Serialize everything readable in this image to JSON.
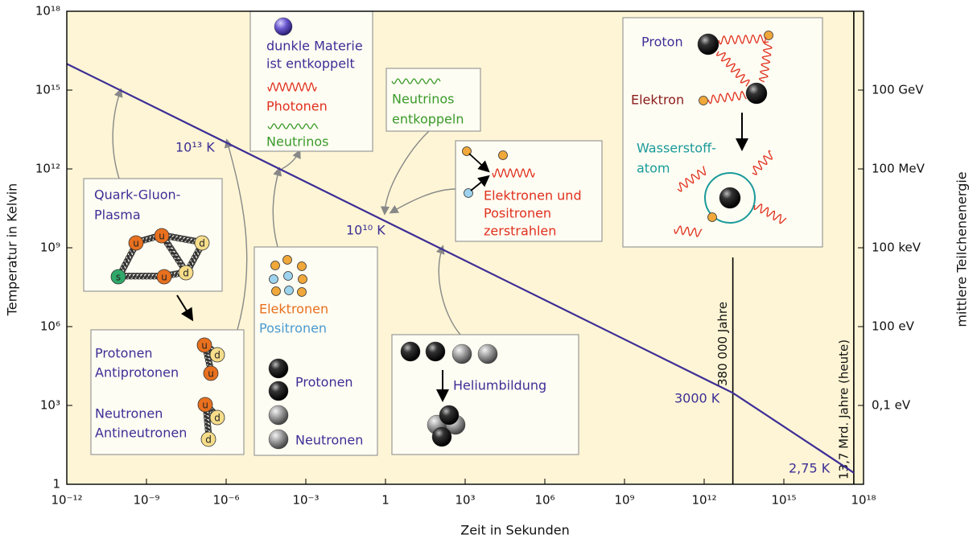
{
  "chart_data": {
    "type": "line",
    "xlabel": "Zeit in Sekunden",
    "ylabel": "Temperatur in Kelvin",
    "y2label": "mittlere Teilchenenergie",
    "xscale": "log",
    "yscale": "log",
    "xlim": [
      1e-12,
      1e+18
    ],
    "ylim": [
      1,
      1e+18
    ],
    "y2lim": [
      0.0001,
      100000000000000.0
    ],
    "background": "#fdf5d5",
    "xticks": [
      {
        "value": 1e-12,
        "label": "10⁻¹²"
      },
      {
        "value": 1e-09,
        "label": "10⁻⁹"
      },
      {
        "value": 1e-06,
        "label": "10⁻⁶"
      },
      {
        "value": 0.001,
        "label": "10⁻³"
      },
      1,
      {
        "value": 1000,
        "label": "10³"
      },
      {
        "value": 1000000,
        "label": "10⁶"
      },
      {
        "value": 1000000000,
        "label": "10⁹"
      },
      {
        "value": 1000000000000,
        "label": "10¹²"
      },
      {
        "value": 1000000000000000.0,
        "label": "10¹⁵"
      },
      {
        "value": 1e+18,
        "label": "10¹⁸"
      }
    ],
    "yticks": [
      1,
      {
        "value": 1000,
        "label": "10³"
      },
      {
        "value": 1000000,
        "label": "10⁶"
      },
      {
        "value": 1000000000,
        "label": "10⁹"
      },
      {
        "value": 1000000000000,
        "label": "10¹²"
      },
      {
        "value": 1000000000000000.0,
        "label": "10¹⁵"
      },
      {
        "value": 1e+18,
        "label": "10¹⁸"
      }
    ],
    "y2ticks": [
      {
        "value": 0.1,
        "label": "0,1 eV"
      },
      {
        "value": 100,
        "label": "100 eV"
      },
      {
        "value": 100000,
        "label": "100 keV"
      },
      {
        "value": 100000000,
        "label": "100 MeV"
      },
      {
        "value": 100000000000,
        "label": "100 GeV"
      }
    ],
    "series": [
      {
        "color": "#3d2e96",
        "x": [
          1e-12,
          12000000000000,
          430000000000000000
        ],
        "values": [
          1e+16,
          3000,
          2.75
        ]
      }
    ],
    "vlines": [
      {
        "x": 12000000000000,
        "label": "380 000 Jahre"
      },
      {
        "x": 430000000000000000,
        "label": "13,7 Mrd. Jahre (heute)"
      }
    ],
    "point_labels": [
      "10¹³ K",
      "10¹⁰ K",
      "3000 K",
      "2,75 K"
    ],
    "boxes": [
      {
        "lines": [
          {
            "text": "Quark-Gluon-",
            "color": "#3d2e96"
          },
          {
            "text": "Plasma",
            "color": "#3d2e96"
          }
        ],
        "quarks": [
          "u",
          "u",
          "d",
          "s",
          "u",
          "d"
        ]
      },
      {
        "lines": [
          {
            "text": "Protonen",
            "color": "#3d2e96"
          },
          {
            "text": "Antiprotonen",
            "color": "#3d2e96"
          },
          {
            "text": "Neutronen",
            "color": "#3d2e96"
          },
          {
            "text": "Antineutronen",
            "color": "#3d2e96"
          }
        ],
        "quarks": [
          "u",
          "d",
          "u",
          "u",
          "d",
          "d"
        ]
      },
      {
        "lines": [
          {
            "text": "dunkle Materie",
            "color": "#3d2e96"
          },
          {
            "text": "ist entkoppelt",
            "color": "#3d2e96"
          },
          {
            "text": "Photonen",
            "color": "#e0301e"
          },
          {
            "text": "Neutrinos",
            "color": "#3a9a2a"
          }
        ]
      },
      {
        "lines": [
          {
            "text": "Neutrinos",
            "color": "#3a9a2a"
          },
          {
            "text": "entkoppeln",
            "color": "#3a9a2a"
          }
        ]
      },
      {
        "lines": [
          {
            "text": "Elektronen und",
            "color": "#e0301e"
          },
          {
            "text": "Positronen",
            "color": "#e0301e"
          },
          {
            "text": "zerstrahlen",
            "color": "#e0301e"
          }
        ]
      },
      {
        "lines": [
          {
            "text": "Elektronen",
            "color": "#e8701e"
          },
          {
            "text": "Positronen",
            "color": "#4a9ad0"
          },
          {
            "text": "Protonen",
            "color": "#3d2e96"
          },
          {
            "text": "Neutronen",
            "color": "#3d2e96"
          }
        ]
      },
      {
        "lines": [
          {
            "text": "Heliumbildung",
            "color": "#3d2e96"
          }
        ]
      },
      {
        "lines": [
          {
            "text": "Proton",
            "color": "#3d2e96"
          },
          {
            "text": "Elektron",
            "color": "#8a1a1a"
          },
          {
            "text": "Wasserstoff-",
            "color": "#1a9a9a"
          },
          {
            "text": "atom",
            "color": "#1a9a9a"
          }
        ]
      }
    ]
  }
}
